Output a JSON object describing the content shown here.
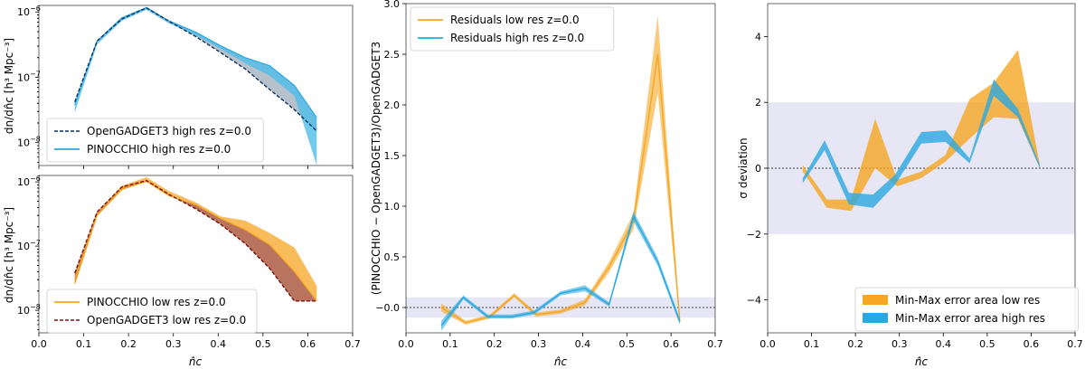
{
  "colors": {
    "orange": "#f5a623",
    "orange_dark": "#e8951a",
    "blue": "#2aa9e0",
    "blue_dark": "#1a8fc8",
    "darkblue_dashed": "#0b2f5e",
    "darkred_dashed": "#7a1010",
    "blue_band_fill": "#4fbde8",
    "orange_band_fill": "#f5a623",
    "grey_blue_area": "#7c8ea0",
    "brown_area": "#a0452a",
    "shade_band": "#e6e6f5"
  },
  "chart_data": [
    {
      "id": "top_left",
      "type": "line",
      "scale": "log",
      "xlim": [
        0.0,
        0.7
      ],
      "ylim_exp": [
        -8.35,
        -5.9
      ],
      "xticks": [
        "0.0",
        "0.1",
        "0.2",
        "0.3",
        "0.4",
        "0.5",
        "0.6",
        "0.7"
      ],
      "yticks": [
        {
          "exp": -8,
          "label": "10",
          "sup": "−8"
        },
        {
          "exp": -7,
          "label": "10",
          "sup": "−7"
        },
        {
          "exp": -6,
          "label": "10",
          "sup": "−6"
        }
      ],
      "ylabel": "dn/dn̂c [h³ Mpc⁻³]",
      "x": [
        0.08,
        0.13,
        0.185,
        0.24,
        0.29,
        0.35,
        0.405,
        0.46,
        0.515,
        0.57,
        0.62
      ],
      "series": [
        {
          "name": "OpenGADGET3 high res z=0.0",
          "style": "dashed",
          "color": "darkblue_dashed",
          "values": [
            4.2e-08,
            3.6e-07,
            7.8e-07,
            1.15e-06,
            7.2e-07,
            4.2e-07,
            2.4e-07,
            1.35e-07,
            6.5e-08,
            3.2e-08,
            1.5e-08
          ]
        },
        {
          "name": "PINOCCHIO high res z=0.0",
          "style": "band",
          "color": "blue",
          "lower": [
            2.9e-08,
            3.2e-07,
            7.3e-07,
            1.08e-06,
            6.7e-07,
            4.4e-07,
            2.75e-07,
            1.65e-07,
            1.05e-07,
            5.2e-08,
            4.5e-09
          ],
          "upper": [
            3.8e-08,
            3.6e-07,
            8.1e-07,
            1.17e-06,
            7.3e-07,
            4.9e-07,
            3.05e-07,
            2e-07,
            1.5e-07,
            7.5e-08,
            2.4e-08
          ]
        }
      ],
      "legend": [
        "OpenGADGET3 high res z=0.0",
        "PINOCCHIO high res z=0.0"
      ]
    },
    {
      "id": "bottom_left",
      "type": "line",
      "scale": "log",
      "xlim": [
        0.0,
        0.7
      ],
      "ylim_exp": [
        -8.35,
        -5.9
      ],
      "xticks": [
        "0.0",
        "0.1",
        "0.2",
        "0.3",
        "0.4",
        "0.5",
        "0.6",
        "0.7"
      ],
      "yticks": [
        {
          "exp": -8,
          "label": "10",
          "sup": "−8"
        },
        {
          "exp": -7,
          "label": "10",
          "sup": "−7"
        },
        {
          "exp": -6,
          "label": "10",
          "sup": "−6"
        }
      ],
      "xlabel": "n̂c",
      "ylabel": "dn/dn̂c [h³ Mpc⁻³]",
      "x": [
        0.08,
        0.13,
        0.185,
        0.24,
        0.29,
        0.35,
        0.405,
        0.46,
        0.515,
        0.57,
        0.62
      ],
      "series": [
        {
          "name": "PINOCCHIO low res z=0.0",
          "style": "band",
          "color": "orange",
          "lower": [
            2.6e-08,
            3e-07,
            7.6e-07,
            1.02e-06,
            6.1e-07,
            4.4e-07,
            2.7e-07,
            1.8e-07,
            1.05e-07,
            4e-08,
            1.4e-08
          ],
          "upper": [
            3.4e-08,
            3.4e-07,
            8.7e-07,
            1.18e-06,
            7.2e-07,
            4.8e-07,
            2.9e-07,
            2.5e-07,
            1.6e-07,
            9.5e-08,
            2.4e-08
          ]
        },
        {
          "name": "OpenGADGET3 low res z=0.0",
          "style": "dashed",
          "color": "darkred_dashed",
          "values": [
            3.8e-08,
            3.4e-07,
            8.3e-07,
            1.05e-06,
            6.4e-07,
            3.8e-07,
            2.2e-07,
            1.1e-07,
            4.5e-08,
            1.4e-08,
            1.4e-08
          ]
        }
      ],
      "legend": [
        "PINOCCHIO low res z=0.0",
        "OpenGADGET3 low res z=0.0"
      ]
    },
    {
      "id": "middle",
      "type": "line",
      "xlim": [
        0.0,
        0.7
      ],
      "ylim": [
        -0.25,
        3.0
      ],
      "xticks": [
        "0.0",
        "0.1",
        "0.2",
        "0.3",
        "0.4",
        "0.5",
        "0.6",
        "0.7"
      ],
      "yticks": [
        "−0.0",
        "0.5",
        "1.0",
        "1.5",
        "2.0",
        "2.5",
        "3.0"
      ],
      "ytick_values": [
        0.0,
        0.5,
        1.0,
        1.5,
        2.0,
        2.5,
        3.0
      ],
      "xlabel": "n̂c",
      "ylabel": "(PINOCCHIO − OpenGADGET3)/OpenGADGET3",
      "shade_band": [
        -0.1,
        0.1
      ],
      "zero_line": 0.0,
      "series": [
        {
          "name": "Residuals low res z=0.0",
          "color": "orange",
          "x": [
            0.08,
            0.135,
            0.19,
            0.245,
            0.295,
            0.35,
            0.405,
            0.46,
            0.515,
            0.57,
            0.62
          ],
          "values": [
            0.0,
            -0.15,
            -0.09,
            0.12,
            -0.07,
            -0.04,
            0.05,
            0.4,
            0.85,
            2.5,
            -0.14
          ],
          "halfwidth": [
            0.04,
            0.02,
            0.02,
            0.02,
            0.02,
            0.02,
            0.03,
            0.05,
            0.08,
            0.38,
            0.03
          ]
        },
        {
          "name": "Residuals high res z=0.0",
          "color": "blue",
          "x": [
            0.08,
            0.13,
            0.185,
            0.24,
            0.29,
            0.35,
            0.405,
            0.46,
            0.515,
            0.57,
            0.62
          ],
          "values": [
            -0.18,
            0.1,
            -0.09,
            -0.09,
            -0.05,
            0.14,
            0.19,
            0.03,
            0.9,
            0.45,
            -0.14
          ],
          "halfwidth": [
            0.05,
            0.02,
            0.02,
            0.02,
            0.02,
            0.02,
            0.03,
            0.02,
            0.05,
            0.04,
            0.03
          ]
        }
      ],
      "legend": [
        "Residuals low res z=0.0",
        "Residuals high res z=0.0"
      ]
    },
    {
      "id": "right",
      "type": "area",
      "xlim": [
        0.0,
        0.7
      ],
      "ylim": [
        -5.0,
        5.0
      ],
      "xticks": [
        "0.0",
        "0.1",
        "0.2",
        "0.3",
        "0.4",
        "0.5",
        "0.6",
        "0.7"
      ],
      "yticks": [
        "−4",
        "−2",
        "0",
        "2",
        "4"
      ],
      "ytick_values": [
        -4,
        -2,
        0,
        2,
        4
      ],
      "xlabel": "n̂c",
      "ylabel": "σ deviation",
      "shade_band": [
        -2,
        2
      ],
      "zero_line": 0,
      "series": [
        {
          "name": "Min-Max error area low res",
          "color": "orange",
          "x": [
            0.08,
            0.135,
            0.19,
            0.245,
            0.295,
            0.35,
            0.405,
            0.46,
            0.515,
            0.57,
            0.62
          ],
          "lower": [
            -0.1,
            -1.2,
            -1.3,
            0.0,
            -0.55,
            -0.3,
            0.2,
            0.9,
            1.55,
            1.5,
            0.0
          ],
          "upper": [
            0.1,
            -0.95,
            -0.95,
            1.5,
            -0.35,
            -0.1,
            0.4,
            2.1,
            2.6,
            3.6,
            0.1
          ]
        },
        {
          "name": "Min-Max error area high res",
          "color": "blue",
          "x": [
            0.08,
            0.13,
            0.185,
            0.24,
            0.29,
            0.35,
            0.405,
            0.46,
            0.515,
            0.57,
            0.62
          ],
          "lower": [
            -0.45,
            0.55,
            -1.1,
            -1.2,
            -0.5,
            0.75,
            0.8,
            0.15,
            2.2,
            1.55,
            0.0
          ],
          "upper": [
            -0.3,
            0.85,
            -0.75,
            -0.8,
            -0.2,
            1.1,
            1.15,
            0.3,
            2.7,
            1.8,
            0.1
          ]
        }
      ],
      "legend": [
        "Min-Max error area low res",
        "Min-Max error area high res"
      ]
    }
  ]
}
